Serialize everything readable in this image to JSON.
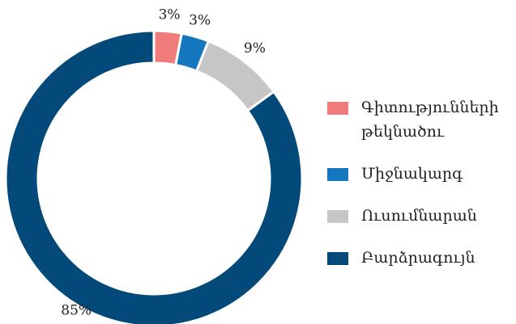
{
  "chart_data": {
    "type": "pie",
    "donut": true,
    "categories": [
      "Գիտությունների թեկնածու",
      "Միջնակարգ",
      "Ուսումնարան",
      "Բարձրագույն"
    ],
    "values": [
      3,
      3,
      9,
      85
    ],
    "value_labels": [
      "3%",
      "3%",
      "9%",
      "85%"
    ],
    "colors": [
      "#f07b7b",
      "#1577bd",
      "#c6c6c6",
      "#03497a"
    ],
    "legend": "right"
  }
}
